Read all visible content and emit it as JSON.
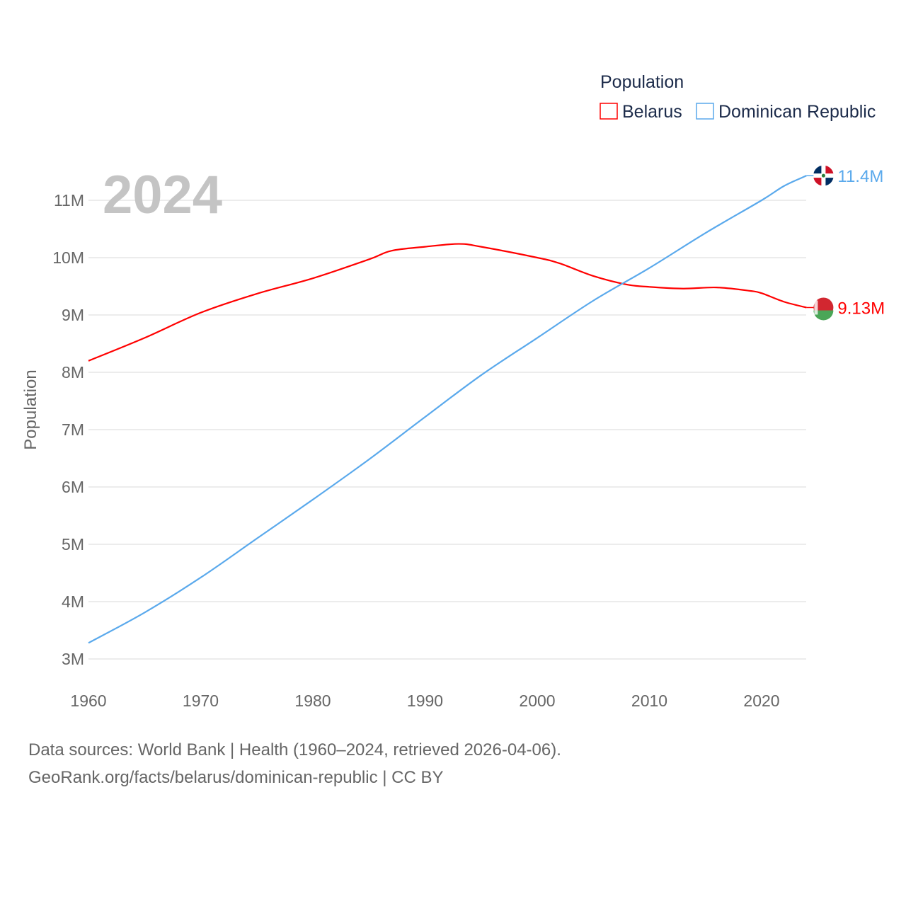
{
  "chart_data": {
    "type": "line",
    "title": "Population",
    "ylabel": "Population",
    "xlabel": "",
    "year_label": "2024",
    "xlim": [
      1960,
      2024
    ],
    "ylim": [
      3000000,
      11500000
    ],
    "x_ticks": [
      1960,
      1970,
      1980,
      1990,
      2000,
      2010,
      2020
    ],
    "y_ticks": [
      3000000,
      4000000,
      5000000,
      6000000,
      7000000,
      8000000,
      9000000,
      10000000,
      11000000
    ],
    "y_tick_labels": [
      "3M",
      "4M",
      "5M",
      "6M",
      "7M",
      "8M",
      "9M",
      "10M",
      "11M"
    ],
    "grid": true,
    "legend_placement": "top-right",
    "series": [
      {
        "name": "Belarus",
        "color": "#ff0000",
        "end_label": "9.13M",
        "x": [
          1960,
          1965,
          1970,
          1975,
          1980,
          1985,
          1987,
          1990,
          1993,
          1995,
          2000,
          2002,
          2005,
          2008,
          2010,
          2013,
          2016,
          2019,
          2020,
          2022,
          2024
        ],
        "values": [
          8200000,
          8600000,
          9040000,
          9370000,
          9640000,
          9970000,
          10120000,
          10190000,
          10240000,
          10190000,
          10000000,
          9900000,
          9680000,
          9530000,
          9490000,
          9460000,
          9480000,
          9420000,
          9380000,
          9230000,
          9130000
        ]
      },
      {
        "name": "Dominican Republic",
        "color": "#5aa9ec",
        "end_label": "11.4M",
        "x": [
          1960,
          1965,
          1970,
          1975,
          1980,
          1985,
          1990,
          1995,
          2000,
          2005,
          2010,
          2015,
          2020,
          2022,
          2024
        ],
        "values": [
          3280000,
          3810000,
          4420000,
          5100000,
          5780000,
          6480000,
          7220000,
          7950000,
          8600000,
          9250000,
          9820000,
          10430000,
          11000000,
          11250000,
          11430000
        ]
      }
    ]
  },
  "footer": {
    "line1": "Data sources: World Bank | Health (1960–2024, retrieved 2026-04-06).",
    "line2": "GeoRank.org/facts/belarus/dominican-republic | CC BY"
  }
}
